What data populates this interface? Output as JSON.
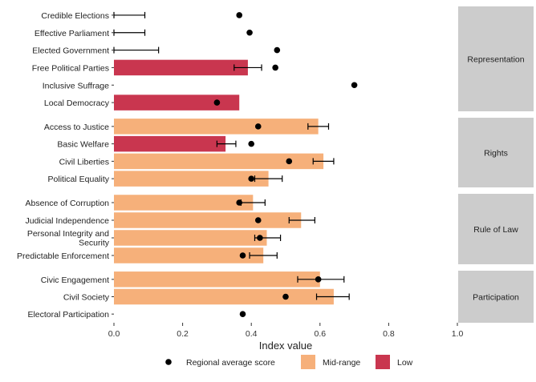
{
  "chart_data": {
    "type": "bar",
    "xlabel": "Index value",
    "xlim": [
      0,
      1
    ],
    "xticks": [
      "0.0",
      "0.2",
      "0.4",
      "0.6",
      "0.8",
      "1.0"
    ],
    "grid": false,
    "legend_position": "bottom",
    "legend": [
      {
        "key": "regional",
        "label": "Regional average score",
        "shape": "point",
        "color": "#000000"
      },
      {
        "key": "Mid-range",
        "label": "Mid-range",
        "shape": "box",
        "color": "#F6B07A"
      },
      {
        "key": "Low",
        "label": "Low",
        "shape": "box",
        "color": "#C9364F"
      }
    ],
    "colors": {
      "Mid-range": "#F6B07A",
      "Low": "#C9364F",
      "point": "#000000",
      "strip": "#CCCCCC"
    },
    "facets": [
      {
        "name": "Representation",
        "rows": [
          {
            "label": "Credible Elections",
            "value": 0,
            "category": null,
            "err": [
              0,
              0.09
            ],
            "regional": 0.365
          },
          {
            "label": "Effective Parliament",
            "value": 0,
            "category": null,
            "err": [
              0,
              0.09
            ],
            "regional": 0.395
          },
          {
            "label": "Elected Government",
            "value": 0,
            "category": null,
            "err": [
              0,
              0.13
            ],
            "regional": 0.475
          },
          {
            "label": "Free Political Parties",
            "value": 0.39,
            "category": "Low",
            "err": [
              0.35,
              0.43
            ],
            "regional": 0.47
          },
          {
            "label": "Inclusive Suffrage",
            "value": 0,
            "category": null,
            "err": null,
            "regional": 0.7
          },
          {
            "label": "Local Democracy",
            "value": 0.365,
            "category": "Low",
            "err": null,
            "regional": 0.3
          }
        ]
      },
      {
        "name": "Rights",
        "rows": [
          {
            "label": "Access to Justice",
            "value": 0.595,
            "category": "Mid-range",
            "err": [
              0.565,
              0.625
            ],
            "regional": 0.42
          },
          {
            "label": "Basic Welfare",
            "value": 0.325,
            "category": "Low",
            "err": [
              0.3,
              0.355
            ],
            "regional": 0.4
          },
          {
            "label": "Civil Liberties",
            "value": 0.61,
            "category": "Mid-range",
            "err": [
              0.58,
              0.64
            ],
            "regional": 0.51
          },
          {
            "label": "Political Equality",
            "value": 0.45,
            "category": "Mid-range",
            "err": [
              0.41,
              0.49
            ],
            "regional": 0.4
          }
        ]
      },
      {
        "name": "Rule of Law",
        "rows": [
          {
            "label": "Absence of Corruption",
            "value": 0.405,
            "category": "Mid-range",
            "err": [
              0.37,
              0.44
            ],
            "regional": 0.365
          },
          {
            "label": "Judicial Independence",
            "value": 0.545,
            "category": "Mid-range",
            "err": [
              0.51,
              0.585
            ],
            "regional": 0.42
          },
          {
            "label": "Personal Integrity and Security",
            "value": 0.445,
            "category": "Mid-range",
            "err": [
              0.41,
              0.485
            ],
            "regional": 0.425
          },
          {
            "label": "Predictable Enforcement",
            "value": 0.435,
            "category": "Mid-range",
            "err": [
              0.395,
              0.475
            ],
            "regional": 0.375
          }
        ]
      },
      {
        "name": "Participation",
        "rows": [
          {
            "label": "Civic Engagement",
            "value": 0.6,
            "category": "Mid-range",
            "err": [
              0.535,
              0.67
            ],
            "regional": 0.595
          },
          {
            "label": "Civil Society",
            "value": 0.64,
            "category": "Mid-range",
            "err": [
              0.59,
              0.685
            ],
            "regional": 0.5
          },
          {
            "label": "Electoral Participation",
            "value": 0,
            "category": null,
            "err": null,
            "regional": 0.375
          }
        ]
      }
    ]
  }
}
